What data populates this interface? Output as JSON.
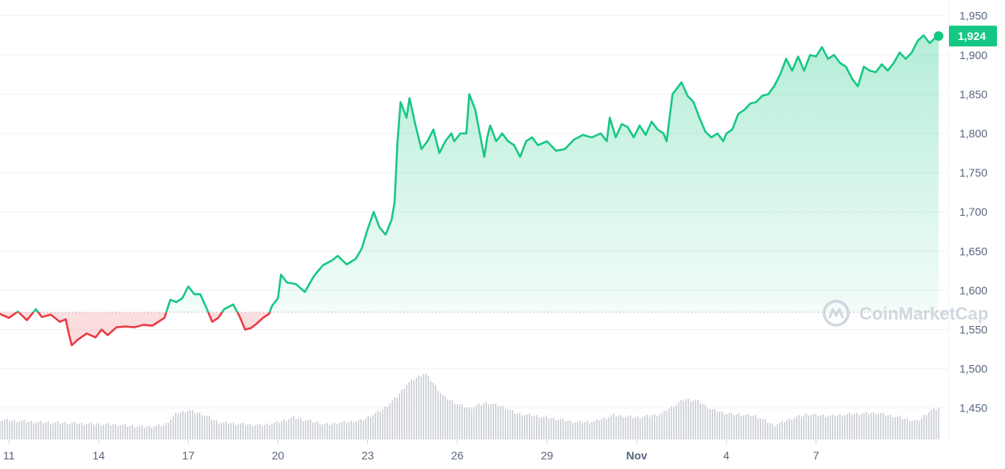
{
  "chart_data": {
    "type": "line",
    "title": "",
    "xlabel": "",
    "ylabel": "",
    "ylim": [
      1410,
      1970
    ],
    "grid": true,
    "legend": "none",
    "y_ticks": [
      {
        "value": 1450,
        "label": "1,450"
      },
      {
        "value": 1500,
        "label": "1,500"
      },
      {
        "value": 1550,
        "label": "1,550"
      },
      {
        "value": 1600,
        "label": "1,600"
      },
      {
        "value": 1650,
        "label": "1,650"
      },
      {
        "value": 1700,
        "label": "1,700"
      },
      {
        "value": 1750,
        "label": "1,750"
      },
      {
        "value": 1800,
        "label": "1,800"
      },
      {
        "value": 1850,
        "label": "1,850"
      },
      {
        "value": 1900,
        "label": "1,900"
      },
      {
        "value": 1950,
        "label": "1,950"
      }
    ],
    "x_ticks": [
      {
        "day": 11,
        "label": "11"
      },
      {
        "day": 14,
        "label": "14"
      },
      {
        "day": 17,
        "label": "17"
      },
      {
        "day": 20,
        "label": "20"
      },
      {
        "day": 23,
        "label": "23"
      },
      {
        "day": 26,
        "label": "26"
      },
      {
        "day": 29,
        "label": "29"
      },
      {
        "day": 32,
        "label": "Nov",
        "bold": true
      },
      {
        "day": 35,
        "label": "4"
      },
      {
        "day": 38,
        "label": "7"
      }
    ],
    "reference_price": 1572,
    "current_price_label": "1,924",
    "colors": {
      "up": "#16c784",
      "down": "#ea3943",
      "badge": "#16c784",
      "volume": "#c3c7cf"
    },
    "watermark": "CoinMarketCap",
    "price_series": [
      [
        10.7,
        1570
      ],
      [
        11.0,
        1565
      ],
      [
        11.3,
        1573
      ],
      [
        11.6,
        1562
      ],
      [
        11.9,
        1576
      ],
      [
        12.1,
        1566
      ],
      [
        12.4,
        1569
      ],
      [
        12.7,
        1560
      ],
      [
        12.9,
        1563
      ],
      [
        13.0,
        1545
      ],
      [
        13.1,
        1530
      ],
      [
        13.3,
        1537
      ],
      [
        13.6,
        1545
      ],
      [
        13.9,
        1540
      ],
      [
        14.1,
        1550
      ],
      [
        14.3,
        1543
      ],
      [
        14.6,
        1553
      ],
      [
        14.9,
        1554
      ],
      [
        15.2,
        1553
      ],
      [
        15.5,
        1556
      ],
      [
        15.8,
        1555
      ],
      [
        16.0,
        1560
      ],
      [
        16.2,
        1565
      ],
      [
        16.4,
        1588
      ],
      [
        16.6,
        1585
      ],
      [
        16.8,
        1590
      ],
      [
        17.0,
        1605
      ],
      [
        17.2,
        1595
      ],
      [
        17.4,
        1595
      ],
      [
        17.6,
        1578
      ],
      [
        17.8,
        1560
      ],
      [
        18.0,
        1565
      ],
      [
        18.2,
        1576
      ],
      [
        18.5,
        1582
      ],
      [
        18.7,
        1568
      ],
      [
        18.9,
        1550
      ],
      [
        19.1,
        1552
      ],
      [
        19.3,
        1558
      ],
      [
        19.5,
        1565
      ],
      [
        19.7,
        1570
      ],
      [
        19.8,
        1580
      ],
      [
        20.0,
        1590
      ],
      [
        20.1,
        1620
      ],
      [
        20.3,
        1610
      ],
      [
        20.6,
        1608
      ],
      [
        20.9,
        1598
      ],
      [
        21.2,
        1618
      ],
      [
        21.5,
        1632
      ],
      [
        21.8,
        1638
      ],
      [
        22.0,
        1644
      ],
      [
        22.3,
        1633
      ],
      [
        22.6,
        1640
      ],
      [
        22.8,
        1653
      ],
      [
        23.0,
        1678
      ],
      [
        23.2,
        1700
      ],
      [
        23.4,
        1680
      ],
      [
        23.6,
        1671
      ],
      [
        23.8,
        1690
      ],
      [
        23.9,
        1712
      ],
      [
        24.0,
        1790
      ],
      [
        24.1,
        1840
      ],
      [
        24.3,
        1820
      ],
      [
        24.4,
        1845
      ],
      [
        24.6,
        1810
      ],
      [
        24.8,
        1780
      ],
      [
        25.0,
        1790
      ],
      [
        25.2,
        1805
      ],
      [
        25.4,
        1775
      ],
      [
        25.6,
        1790
      ],
      [
        25.8,
        1800
      ],
      [
        25.9,
        1790
      ],
      [
        26.1,
        1800
      ],
      [
        26.3,
        1800
      ],
      [
        26.4,
        1850
      ],
      [
        26.6,
        1830
      ],
      [
        26.7,
        1810
      ],
      [
        26.9,
        1770
      ],
      [
        27.0,
        1795
      ],
      [
        27.1,
        1810
      ],
      [
        27.3,
        1790
      ],
      [
        27.5,
        1800
      ],
      [
        27.7,
        1790
      ],
      [
        27.9,
        1785
      ],
      [
        28.1,
        1770
      ],
      [
        28.3,
        1790
      ],
      [
        28.5,
        1795
      ],
      [
        28.7,
        1785
      ],
      [
        29.0,
        1790
      ],
      [
        29.3,
        1778
      ],
      [
        29.6,
        1780
      ],
      [
        29.9,
        1792
      ],
      [
        30.2,
        1798
      ],
      [
        30.5,
        1795
      ],
      [
        30.8,
        1800
      ],
      [
        31.0,
        1790
      ],
      [
        31.1,
        1820
      ],
      [
        31.3,
        1795
      ],
      [
        31.5,
        1812
      ],
      [
        31.7,
        1808
      ],
      [
        31.9,
        1795
      ],
      [
        32.1,
        1810
      ],
      [
        32.3,
        1798
      ],
      [
        32.5,
        1815
      ],
      [
        32.7,
        1805
      ],
      [
        32.9,
        1800
      ],
      [
        33.0,
        1790
      ],
      [
        33.2,
        1850
      ],
      [
        33.4,
        1860
      ],
      [
        33.5,
        1865
      ],
      [
        33.7,
        1848
      ],
      [
        33.9,
        1840
      ],
      [
        34.1,
        1820
      ],
      [
        34.3,
        1802
      ],
      [
        34.5,
        1795
      ],
      [
        34.7,
        1800
      ],
      [
        34.9,
        1790
      ],
      [
        35.0,
        1800
      ],
      [
        35.2,
        1805
      ],
      [
        35.4,
        1825
      ],
      [
        35.6,
        1830
      ],
      [
        35.8,
        1838
      ],
      [
        36.0,
        1840
      ],
      [
        36.2,
        1848
      ],
      [
        36.4,
        1850
      ],
      [
        36.6,
        1860
      ],
      [
        36.8,
        1875
      ],
      [
        37.0,
        1895
      ],
      [
        37.2,
        1880
      ],
      [
        37.4,
        1898
      ],
      [
        37.6,
        1880
      ],
      [
        37.8,
        1900
      ],
      [
        38.0,
        1898
      ],
      [
        38.2,
        1910
      ],
      [
        38.4,
        1895
      ],
      [
        38.6,
        1900
      ],
      [
        38.8,
        1890
      ],
      [
        39.0,
        1885
      ],
      [
        39.2,
        1870
      ],
      [
        39.4,
        1860
      ],
      [
        39.6,
        1885
      ],
      [
        39.8,
        1880
      ],
      [
        40.0,
        1878
      ],
      [
        40.2,
        1888
      ],
      [
        40.4,
        1880
      ],
      [
        40.6,
        1890
      ],
      [
        40.8,
        1903
      ],
      [
        41.0,
        1895
      ],
      [
        41.2,
        1903
      ],
      [
        41.4,
        1918
      ],
      [
        41.6,
        1925
      ],
      [
        41.8,
        1915
      ],
      [
        42.0,
        1922
      ],
      [
        42.1,
        1924
      ]
    ],
    "volume_series": [
      [
        10.7,
        1435
      ],
      [
        12.0,
        1432
      ],
      [
        14.5,
        1429
      ],
      [
        15.5,
        1426
      ],
      [
        16.2,
        1428
      ],
      [
        16.6,
        1443
      ],
      [
        17.0,
        1447
      ],
      [
        17.5,
        1442
      ],
      [
        18.0,
        1432
      ],
      [
        19.5,
        1428
      ],
      [
        20.0,
        1432
      ],
      [
        20.5,
        1438
      ],
      [
        21.0,
        1434
      ],
      [
        21.6,
        1429
      ],
      [
        22.2,
        1432
      ],
      [
        22.8,
        1434
      ],
      [
        23.5,
        1448
      ],
      [
        24.0,
        1465
      ],
      [
        24.3,
        1480
      ],
      [
        24.6,
        1488
      ],
      [
        24.9,
        1495
      ],
      [
        25.2,
        1482
      ],
      [
        25.5,
        1466
      ],
      [
        26.0,
        1455
      ],
      [
        26.4,
        1450
      ],
      [
        27.0,
        1457
      ],
      [
        27.5,
        1452
      ],
      [
        28.0,
        1443
      ],
      [
        29.0,
        1438
      ],
      [
        30.0,
        1432
      ],
      [
        30.6,
        1433
      ],
      [
        31.2,
        1441
      ],
      [
        32.0,
        1438
      ],
      [
        32.8,
        1442
      ],
      [
        33.2,
        1452
      ],
      [
        33.6,
        1461
      ],
      [
        34.0,
        1460
      ],
      [
        34.5,
        1448
      ],
      [
        35.0,
        1443
      ],
      [
        36.0,
        1440
      ],
      [
        36.6,
        1428
      ],
      [
        37.2,
        1437
      ],
      [
        37.7,
        1442
      ],
      [
        38.5,
        1440
      ],
      [
        39.0,
        1442
      ],
      [
        40.0,
        1444
      ],
      [
        40.8,
        1438
      ],
      [
        41.4,
        1433
      ],
      [
        41.8,
        1446
      ],
      [
        42.1,
        1450
      ]
    ]
  }
}
